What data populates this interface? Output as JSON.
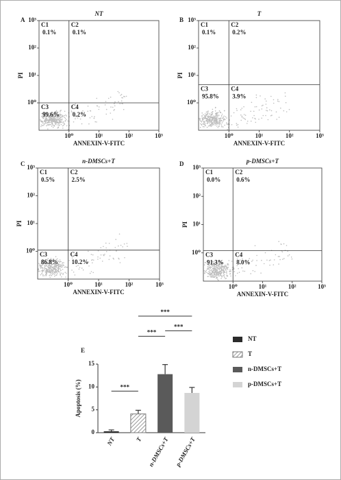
{
  "chart_data": [
    {
      "type": "quadrant",
      "panel": "A",
      "title": "NT",
      "xlabel": "ANNEXIN-V-FITC",
      "ylabel": "PI",
      "xscale": "log",
      "yscale": "log",
      "xlim": [
        0.1,
        1000
      ],
      "ylim": [
        0.1,
        1000
      ],
      "xticks": [
        {
          "value": 1,
          "label": "10⁰"
        },
        {
          "value": 10,
          "label": "10¹"
        },
        {
          "value": 100,
          "label": "10²"
        },
        {
          "value": 1000,
          "label": "10³"
        }
      ],
      "yticks": [
        {
          "value": 1,
          "label": "10⁰"
        },
        {
          "value": 10,
          "label": "10¹"
        },
        {
          "value": 100,
          "label": "10²"
        },
        {
          "value": 1000,
          "label": "10³"
        }
      ],
      "gate": [
        1,
        1
      ],
      "quadrants": [
        "C1",
        "C2",
        "C3",
        "C4"
      ],
      "values": [
        0.1,
        0.1,
        99.6,
        0.2
      ],
      "value_labels": [
        "0.1%",
        "0.1%",
        "99.6%",
        "0.2%"
      ]
    },
    {
      "type": "quadrant",
      "panel": "B",
      "title": "T",
      "xlabel": "ANNEXIN-V-FITC",
      "ylabel": "PI",
      "xscale": "log",
      "yscale": "log",
      "xlim": [
        0.1,
        1000
      ],
      "ylim": [
        0.1,
        1000
      ],
      "xticks": [
        {
          "value": 1,
          "label": "10⁰"
        },
        {
          "value": 10,
          "label": "10¹"
        },
        {
          "value": 100,
          "label": "10²"
        },
        {
          "value": 1000,
          "label": "10³"
        }
      ],
      "yticks": [
        {
          "value": 1,
          "label": "10⁰"
        },
        {
          "value": 10,
          "label": "10¹"
        },
        {
          "value": 100,
          "label": "10²"
        },
        {
          "value": 1000,
          "label": "10³"
        }
      ],
      "gate": [
        1,
        4.6
      ],
      "quadrants": [
        "C1",
        "C2",
        "C3",
        "C4"
      ],
      "values": [
        0.1,
        0.2,
        95.8,
        3.9
      ],
      "value_labels": [
        "0.1%",
        "0.2%",
        "95.8%",
        "3.9%"
      ]
    },
    {
      "type": "quadrant",
      "panel": "C",
      "title": "n-DMSCs+T",
      "xlabel": "ANNEXIN-V-FITC",
      "ylabel": "PI",
      "xscale": "log",
      "yscale": "log",
      "xlim": [
        0.1,
        1000
      ],
      "ylim": [
        0.1,
        1000
      ],
      "xticks": [
        {
          "value": 1,
          "label": "10⁰"
        },
        {
          "value": 10,
          "label": "10¹"
        },
        {
          "value": 100,
          "label": "10²"
        },
        {
          "value": 1000,
          "label": "10³"
        }
      ],
      "yticks": [
        {
          "value": 1,
          "label": "10⁰"
        },
        {
          "value": 10,
          "label": "10¹"
        },
        {
          "value": 100,
          "label": "10²"
        },
        {
          "value": 1000,
          "label": "10³"
        }
      ],
      "gate": [
        1,
        1.1
      ],
      "quadrants": [
        "C1",
        "C2",
        "C3",
        "C4"
      ],
      "values": [
        0.5,
        2.5,
        86.8,
        10.2
      ],
      "value_labels": [
        "0.5%",
        "2.5%",
        "86.8%",
        "10.2%"
      ]
    },
    {
      "type": "quadrant",
      "panel": "D",
      "title": "p-DMSCs+T",
      "xlabel": "ANNEXIN-V-FITC",
      "ylabel": "PI",
      "xscale": "log",
      "yscale": "log",
      "xlim": [
        0.1,
        1000
      ],
      "ylim": [
        0.1,
        1000
      ],
      "xticks": [
        {
          "value": 1,
          "label": "10⁰"
        },
        {
          "value": 10,
          "label": "10¹"
        },
        {
          "value": 100,
          "label": "10²"
        },
        {
          "value": 1000,
          "label": "10³"
        }
      ],
      "yticks": [
        {
          "value": 1,
          "label": "10⁰"
        },
        {
          "value": 10,
          "label": "10¹"
        },
        {
          "value": 100,
          "label": "10²"
        },
        {
          "value": 1000,
          "label": "10³"
        }
      ],
      "gate": [
        1,
        1.2
      ],
      "quadrants": [
        "C1",
        "C2",
        "C3",
        "C4"
      ],
      "values": [
        0.0,
        0.6,
        91.3,
        8.0
      ],
      "value_labels": [
        "0.0%",
        "0.6%",
        "91.3%",
        "8.0%"
      ]
    },
    {
      "type": "bar",
      "panel": "E",
      "ylabel": "Apoptosis (%)",
      "categories": [
        "NT",
        "T",
        "n-DMSCs+T",
        "p-DMSCs+T"
      ],
      "values": [
        0.3,
        4.1,
        12.8,
        8.7
      ],
      "errors": [
        0.3,
        0.8,
        2.1,
        1.2
      ],
      "colors": [
        "#2b2b2b",
        "#ffffff",
        "#5a5a5a",
        "#d4d4d4"
      ],
      "hatched": [
        false,
        true,
        false,
        false
      ],
      "ylim": [
        0,
        15
      ],
      "yticks": [
        0,
        5,
        10,
        15
      ],
      "legend": "right",
      "significance": [
        {
          "from": "NT",
          "to": "T",
          "label": "***",
          "y": 9.1
        },
        {
          "from": "T",
          "to": "n-DMSCs+T",
          "label": "***",
          "y": 21.1
        },
        {
          "from": "n-DMSCs+T",
          "to": "p-DMSCs+T",
          "label": "***",
          "y": 22.3
        },
        {
          "from": "T",
          "to": "p-DMSCs+T",
          "label": "***",
          "y": 25.5
        }
      ]
    }
  ]
}
